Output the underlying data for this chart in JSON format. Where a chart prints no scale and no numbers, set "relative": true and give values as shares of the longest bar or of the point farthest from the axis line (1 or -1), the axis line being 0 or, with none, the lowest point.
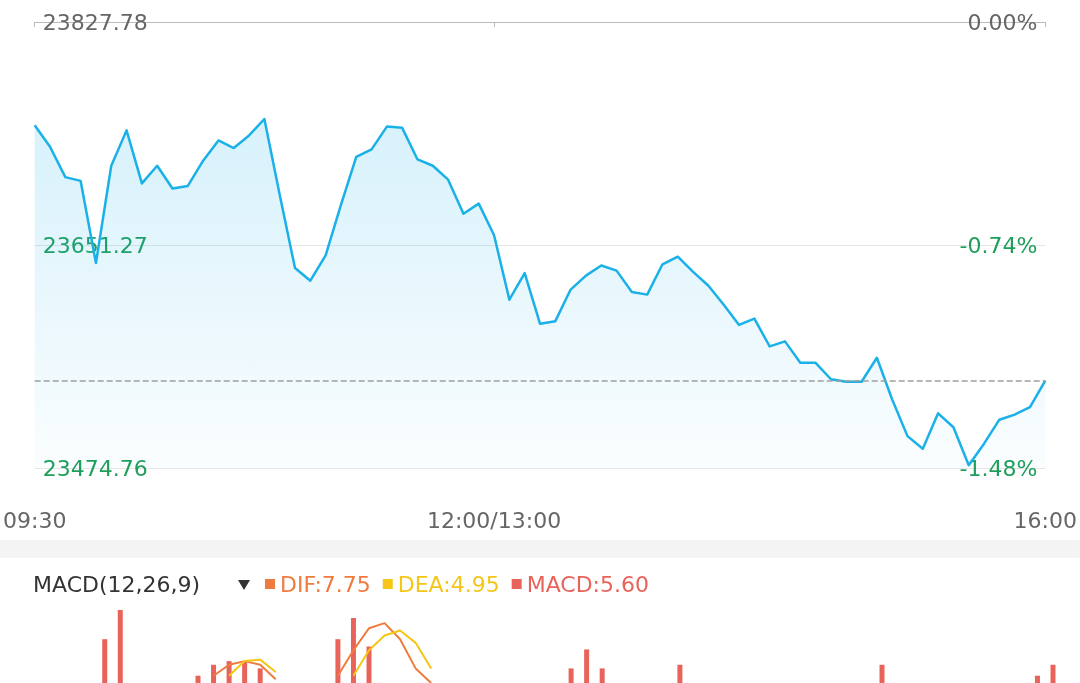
{
  "chart_data": [
    {
      "type": "area",
      "categories": [
        "09:30",
        null,
        null,
        null,
        null,
        null,
        null,
        null,
        null,
        null,
        null,
        null,
        null,
        null,
        null,
        null,
        null,
        null,
        null,
        null,
        null,
        null,
        null,
        null,
        null,
        null,
        null,
        null,
        null,
        null,
        "12:00/13:00",
        null,
        null,
        null,
        null,
        null,
        null,
        null,
        null,
        null,
        null,
        null,
        null,
        null,
        null,
        null,
        null,
        null,
        null,
        null,
        null,
        null,
        null,
        null,
        null,
        null,
        null,
        null,
        null,
        null,
        null,
        null,
        null,
        null,
        null,
        null,
        "16:00"
      ],
      "ylim": [
        23474.76,
        23827.78
      ],
      "yticks": [
        23474.76,
        23651.27,
        23827.78
      ],
      "y2lim": [
        -1.48,
        0
      ],
      "y2ticks": [
        {
          "value": -1.48,
          "label": "-1.48%"
        },
        {
          "value": -0.74,
          "label": "-0.74%"
        },
        {
          "value": 0,
          "label": "0.00%"
        }
      ],
      "grid": "y",
      "ref_lines": [
        {
          "axis": "y",
          "value": 23544,
          "color": "#9e9e9e",
          "line_style": "dashed"
        }
      ],
      "series": [
        {
          "color": "#1ab0e8",
          "values": [
            23746,
            23729,
            23705,
            23702,
            23637,
            23714,
            23742,
            23700,
            23714,
            23696,
            23698,
            23718,
            23734,
            23728,
            23738,
            23751,
            23691,
            23633,
            23623,
            23643,
            23683,
            23721,
            23727,
            23745,
            23744,
            23719,
            23714,
            23703,
            23676,
            23684,
            23659,
            23608,
            23629,
            23589,
            23591,
            23616,
            23627,
            23635,
            23631,
            23614,
            23612,
            23636,
            23642,
            23630,
            23619,
            23604,
            23588,
            23593,
            23571,
            23575,
            23558,
            23558,
            23545,
            23543,
            23543,
            23562,
            23529,
            23500,
            23490,
            23518,
            23507,
            23477,
            23494,
            23513,
            23517,
            23523,
            23544
          ]
        }
      ]
    },
    {
      "type": "bar",
      "title": "MACD(12,26,9)",
      "relative": true,
      "legend": "top left",
      "categories": [
        null,
        null,
        null,
        null,
        null,
        null,
        null,
        null,
        null,
        null,
        null,
        null,
        null,
        null,
        null,
        null,
        null,
        null,
        null,
        null,
        null,
        null,
        null,
        null,
        null,
        null,
        null,
        null,
        null,
        null,
        null,
        null,
        null,
        null,
        null,
        null,
        null,
        null,
        null,
        null,
        null,
        null,
        null,
        null,
        null,
        null,
        null,
        null,
        null,
        null,
        null,
        null,
        null,
        null,
        null,
        null,
        null,
        null,
        null,
        null,
        null,
        null,
        null,
        null,
        null,
        null,
        null
      ],
      "series": [
        {
          "name": "DIF:7.75",
          "type": "line",
          "color": "#f07b3f",
          "values": [
            null,
            null,
            null,
            null,
            null,
            null,
            null,
            null,
            null,
            null,
            null,
            null,
            0.1,
            0.25,
            0.3,
            0.25,
            0.05,
            null,
            null,
            null,
            0.1,
            0.45,
            0.75,
            0.82,
            0.6,
            0.2,
            0,
            null,
            null,
            null,
            null,
            null,
            null,
            null,
            null,
            null,
            null,
            null,
            null,
            null,
            null,
            null,
            null,
            null,
            null,
            null,
            null,
            null,
            null,
            null,
            null,
            null,
            null,
            null,
            null,
            null,
            null,
            null,
            null,
            null,
            null,
            null,
            null,
            null,
            null,
            null,
            null
          ]
        },
        {
          "name": "DEA:4.95",
          "type": "line",
          "color": "#f5c518",
          "values": [
            null,
            null,
            null,
            null,
            null,
            null,
            null,
            null,
            null,
            null,
            null,
            null,
            null,
            0.1,
            0.3,
            0.32,
            0.15,
            null,
            null,
            null,
            null,
            0.1,
            0.45,
            0.65,
            0.72,
            0.55,
            0.2,
            null,
            null,
            null,
            null,
            null,
            null,
            null,
            null,
            null,
            null,
            null,
            null,
            null,
            null,
            null,
            null,
            null,
            null,
            null,
            null,
            null,
            null,
            null,
            null,
            null,
            null,
            null,
            null,
            null,
            null,
            null,
            null,
            null,
            null,
            null,
            null,
            null,
            null,
            null,
            null
          ]
        },
        {
          "name": "MACD:5.60",
          "color": "#e8635a",
          "values": [
            null,
            null,
            null,
            null,
            null,
            0.6,
            1,
            null,
            null,
            null,
            null,
            0.1,
            0.25,
            0.3,
            0.3,
            0.2,
            null,
            null,
            null,
            null,
            0.6,
            0.89,
            0.5,
            null,
            null,
            null,
            null,
            null,
            null,
            null,
            null,
            null,
            null,
            null,
            null,
            0.2,
            0.46,
            0.2,
            null,
            null,
            null,
            null,
            0.25,
            null,
            null,
            null,
            null,
            null,
            null,
            null,
            null,
            null,
            null,
            null,
            null,
            0.25,
            null,
            null,
            null,
            null,
            null,
            null,
            null,
            null,
            null,
            0.1,
            0.25
          ]
        }
      ]
    }
  ]
}
